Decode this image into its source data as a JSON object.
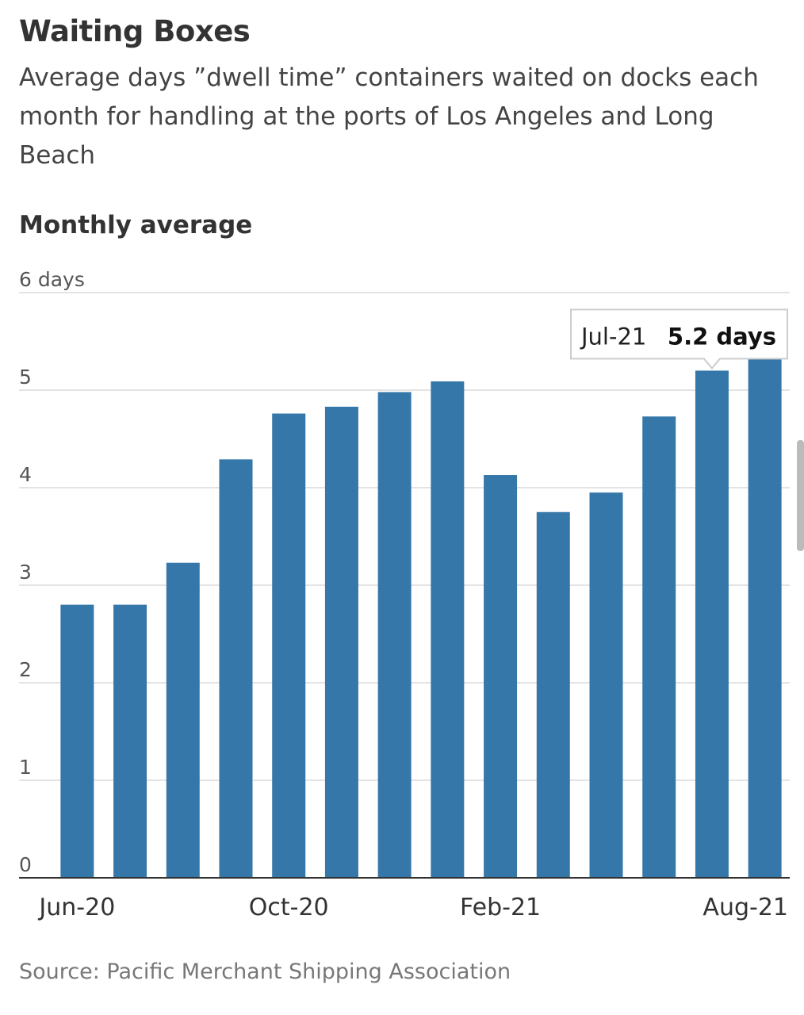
{
  "chart_data": {
    "type": "bar",
    "title": "Waiting Boxes",
    "subtitle": "Average days ”dwell time” containers waited on docks each month for handling at the ports of Los Angeles and Long Beach",
    "y_label": "Monthly average",
    "source": "Source: Pacific Merchant Shipping Association",
    "categories": [
      "Jun-20",
      null,
      null,
      null,
      "Oct-20",
      null,
      null,
      null,
      "Feb-21",
      null,
      null,
      null,
      null,
      "Aug-21"
    ],
    "values": [
      2.8,
      2.8,
      3.23,
      4.29,
      4.76,
      4.83,
      4.98,
      5.09,
      4.13,
      3.75,
      3.95,
      4.73,
      5.2,
      5.37
    ],
    "color": "#3677aa",
    "ylim": [
      0,
      6
    ],
    "yticks": [
      0,
      1,
      2,
      3,
      4,
      5,
      {
        "value": 6,
        "label": "6 days"
      }
    ],
    "grid": true,
    "tooltip": {
      "category": "Jul-21",
      "value": 5.2,
      "value_label": "5.2 days"
    }
  }
}
